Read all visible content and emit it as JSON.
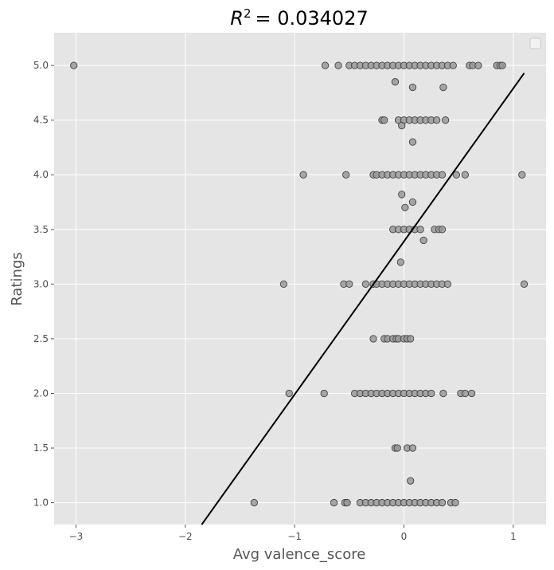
{
  "chart_data": {
    "type": "scatter",
    "title_prefix": "R",
    "title_exponent": "2",
    "title_value": "= 0.034027",
    "xlabel": "Avg valence_score",
    "ylabel": "Ratings",
    "xlim": [
      -3.2,
      1.3
    ],
    "ylim": [
      0.8,
      5.3
    ],
    "xticks": [
      -3,
      -2,
      -1,
      0,
      1
    ],
    "xtick_labels": [
      "−3",
      "−2",
      "−1",
      "0",
      "1"
    ],
    "yticks": [
      1.0,
      1.5,
      2.0,
      2.5,
      3.0,
      3.5,
      4.0,
      4.5,
      5.0
    ],
    "ytick_labels": [
      "1.0",
      "1.5",
      "2.0",
      "2.5",
      "3.0",
      "3.5",
      "4.0",
      "4.5",
      "5.0"
    ],
    "grid": true,
    "legend": "top-right, empty",
    "background_color": "#e5e5e5",
    "point_color": "#999999",
    "point_edge_color": "#444444",
    "line_color": "#000000",
    "regression_line": {
      "x": [
        -1.85,
        1.1
      ],
      "y": [
        0.8,
        4.93
      ]
    },
    "points": [
      [
        -3.02,
        5.0
      ],
      [
        -0.72,
        5.0
      ],
      [
        -0.6,
        5.0
      ],
      [
        -0.5,
        5.0
      ],
      [
        -0.45,
        5.0
      ],
      [
        -0.4,
        5.0
      ],
      [
        -0.35,
        5.0
      ],
      [
        -0.3,
        5.0
      ],
      [
        -0.25,
        5.0
      ],
      [
        -0.2,
        5.0
      ],
      [
        -0.15,
        5.0
      ],
      [
        -0.1,
        5.0
      ],
      [
        -0.05,
        5.0
      ],
      [
        0.0,
        5.0
      ],
      [
        0.05,
        5.0
      ],
      [
        0.1,
        5.0
      ],
      [
        0.15,
        5.0
      ],
      [
        0.2,
        5.0
      ],
      [
        0.25,
        5.0
      ],
      [
        0.3,
        5.0
      ],
      [
        0.35,
        5.0
      ],
      [
        0.4,
        5.0
      ],
      [
        0.45,
        5.0
      ],
      [
        0.6,
        5.0
      ],
      [
        0.63,
        5.0
      ],
      [
        0.68,
        5.0
      ],
      [
        0.85,
        5.0
      ],
      [
        0.88,
        5.0
      ],
      [
        0.9,
        5.0
      ],
      [
        -0.08,
        4.85
      ],
      [
        0.08,
        4.8
      ],
      [
        0.36,
        4.8
      ],
      [
        -0.2,
        4.5
      ],
      [
        -0.18,
        4.5
      ],
      [
        -0.05,
        4.5
      ],
      [
        0.0,
        4.5
      ],
      [
        0.05,
        4.5
      ],
      [
        0.1,
        4.5
      ],
      [
        0.15,
        4.5
      ],
      [
        0.2,
        4.5
      ],
      [
        0.25,
        4.5
      ],
      [
        0.3,
        4.5
      ],
      [
        0.38,
        4.5
      ],
      [
        -0.02,
        4.45
      ],
      [
        0.08,
        4.3
      ],
      [
        -0.92,
        4.0
      ],
      [
        -0.53,
        4.0
      ],
      [
        -0.28,
        4.0
      ],
      [
        -0.25,
        4.0
      ],
      [
        -0.2,
        4.0
      ],
      [
        -0.15,
        4.0
      ],
      [
        -0.1,
        4.0
      ],
      [
        -0.05,
        4.0
      ],
      [
        0.0,
        4.0
      ],
      [
        0.05,
        4.0
      ],
      [
        0.1,
        4.0
      ],
      [
        0.15,
        4.0
      ],
      [
        0.2,
        4.0
      ],
      [
        0.25,
        4.0
      ],
      [
        0.3,
        4.0
      ],
      [
        0.35,
        4.0
      ],
      [
        0.48,
        4.0
      ],
      [
        0.56,
        4.0
      ],
      [
        1.08,
        4.0
      ],
      [
        -0.02,
        3.82
      ],
      [
        0.08,
        3.75
      ],
      [
        0.01,
        3.7
      ],
      [
        -0.1,
        3.5
      ],
      [
        -0.05,
        3.5
      ],
      [
        0.0,
        3.5
      ],
      [
        0.05,
        3.5
      ],
      [
        0.1,
        3.5
      ],
      [
        0.15,
        3.5
      ],
      [
        0.28,
        3.5
      ],
      [
        0.32,
        3.5
      ],
      [
        0.35,
        3.5
      ],
      [
        0.18,
        3.4
      ],
      [
        -0.03,
        3.2
      ],
      [
        -1.1,
        3.0
      ],
      [
        -0.55,
        3.0
      ],
      [
        -0.5,
        3.0
      ],
      [
        -0.35,
        3.0
      ],
      [
        -0.28,
        3.0
      ],
      [
        -0.25,
        3.0
      ],
      [
        -0.2,
        3.0
      ],
      [
        -0.15,
        3.0
      ],
      [
        -0.1,
        3.0
      ],
      [
        -0.05,
        3.0
      ],
      [
        0.0,
        3.0
      ],
      [
        0.05,
        3.0
      ],
      [
        0.1,
        3.0
      ],
      [
        0.15,
        3.0
      ],
      [
        0.2,
        3.0
      ],
      [
        0.25,
        3.0
      ],
      [
        0.3,
        3.0
      ],
      [
        0.35,
        3.0
      ],
      [
        0.4,
        3.0
      ],
      [
        1.1,
        3.0
      ],
      [
        -0.28,
        2.5
      ],
      [
        -0.18,
        2.5
      ],
      [
        -0.15,
        2.5
      ],
      [
        -0.1,
        2.5
      ],
      [
        -0.07,
        2.5
      ],
      [
        -0.05,
        2.5
      ],
      [
        0.0,
        2.5
      ],
      [
        0.03,
        2.5
      ],
      [
        0.06,
        2.5
      ],
      [
        -1.05,
        2.0
      ],
      [
        -0.73,
        2.0
      ],
      [
        -0.45,
        2.0
      ],
      [
        -0.4,
        2.0
      ],
      [
        -0.35,
        2.0
      ],
      [
        -0.3,
        2.0
      ],
      [
        -0.25,
        2.0
      ],
      [
        -0.2,
        2.0
      ],
      [
        -0.15,
        2.0
      ],
      [
        -0.1,
        2.0
      ],
      [
        -0.05,
        2.0
      ],
      [
        0.0,
        2.0
      ],
      [
        0.05,
        2.0
      ],
      [
        0.1,
        2.0
      ],
      [
        0.15,
        2.0
      ],
      [
        0.2,
        2.0
      ],
      [
        0.25,
        2.0
      ],
      [
        0.36,
        2.0
      ],
      [
        0.52,
        2.0
      ],
      [
        0.56,
        2.0
      ],
      [
        0.62,
        2.0
      ],
      [
        -0.08,
        1.5
      ],
      [
        -0.06,
        1.5
      ],
      [
        0.03,
        1.5
      ],
      [
        0.08,
        1.5
      ],
      [
        0.06,
        1.2
      ],
      [
        -1.37,
        1.0
      ],
      [
        -0.64,
        1.0
      ],
      [
        -0.54,
        1.0
      ],
      [
        -0.52,
        1.0
      ],
      [
        -0.4,
        1.0
      ],
      [
        -0.35,
        1.0
      ],
      [
        -0.3,
        1.0
      ],
      [
        -0.25,
        1.0
      ],
      [
        -0.2,
        1.0
      ],
      [
        -0.15,
        1.0
      ],
      [
        -0.1,
        1.0
      ],
      [
        -0.05,
        1.0
      ],
      [
        0.0,
        1.0
      ],
      [
        0.05,
        1.0
      ],
      [
        0.1,
        1.0
      ],
      [
        0.15,
        1.0
      ],
      [
        0.2,
        1.0
      ],
      [
        0.25,
        1.0
      ],
      [
        0.3,
        1.0
      ],
      [
        0.35,
        1.0
      ],
      [
        0.43,
        1.0
      ],
      [
        0.47,
        1.0
      ]
    ]
  }
}
